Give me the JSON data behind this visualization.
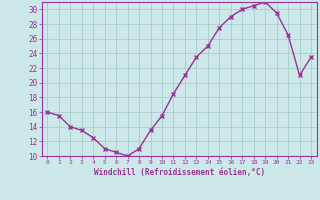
{
  "x": [
    0,
    1,
    2,
    3,
    4,
    5,
    6,
    7,
    8,
    9,
    10,
    11,
    12,
    13,
    14,
    15,
    16,
    17,
    18,
    19,
    20,
    21,
    22,
    23
  ],
  "y": [
    16,
    15.5,
    14,
    13.5,
    12.5,
    11,
    10.5,
    10,
    11,
    13.5,
    15.5,
    18.5,
    21,
    23.5,
    25,
    27.5,
    29,
    30,
    30.5,
    31,
    29.5,
    26.5,
    21,
    23.5
  ],
  "line_color": "#993399",
  "marker": "x",
  "marker_color": "#993399",
  "bg_color": "#cce8e8",
  "grid_color": "#aacccc",
  "xlabel": "Windchill (Refroidissement éolien,°C)",
  "xlabel_color": "#993399",
  "tick_color": "#993399",
  "ylim": [
    10,
    31
  ],
  "yticks": [
    10,
    12,
    14,
    16,
    18,
    20,
    22,
    24,
    26,
    28,
    30
  ],
  "xlim": [
    -0.5,
    23.5
  ],
  "marker_size": 3,
  "line_width": 1.0
}
